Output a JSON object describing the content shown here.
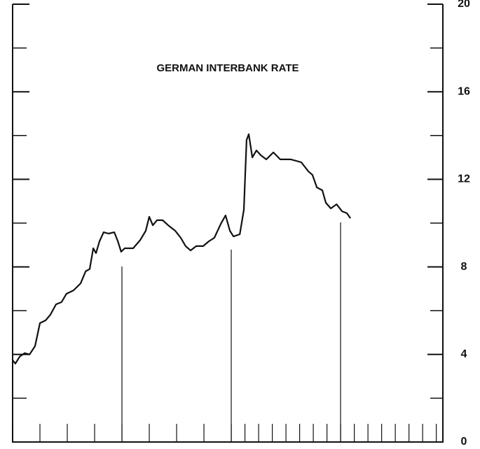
{
  "chart_data": {
    "type": "line",
    "title": "GERMAN INTERBANK RATE",
    "x": [
      0,
      0.1,
      0.26,
      0.44,
      0.62,
      0.82,
      1,
      1.21,
      1.38,
      1.59,
      1.79,
      1.97,
      2.23,
      2.49,
      2.67,
      2.82,
      2.95,
      3.05,
      3.18,
      3.33,
      3.51,
      3.72,
      3.85,
      3.97,
      4.1,
      4.41,
      4.67,
      4.87,
      5,
      5.13,
      5.28,
      5.49,
      5.69,
      5.95,
      6.15,
      6.33,
      6.51,
      6.72,
      6.97,
      7.18,
      7.38,
      7.62,
      7.79,
      7.95,
      8.08,
      8.31,
      8.46,
      8.56,
      8.64,
      8.77,
      8.92,
      9.08,
      9.28,
      9.54,
      9.79,
      10.18,
      10.56,
      10.82,
      10.97,
      11.13,
      11.33,
      11.46,
      11.64,
      11.85,
      12.05,
      12.23,
      12.36
    ],
    "series": [
      {
        "color": "#111111",
        "values": [
          3.74,
          3.58,
          3.9,
          4.06,
          4.0,
          4.38,
          5.43,
          5.56,
          5.81,
          6.29,
          6.39,
          6.77,
          6.93,
          7.25,
          7.8,
          7.9,
          8.85,
          8.63,
          9.17,
          9.58,
          9.52,
          9.58,
          9.17,
          8.69,
          8.85,
          8.85,
          9.23,
          9.65,
          10.29,
          9.9,
          10.13,
          10.13,
          9.9,
          9.65,
          9.33,
          8.95,
          8.75,
          8.95,
          8.95,
          9.17,
          9.33,
          9.97,
          10.35,
          9.65,
          9.39,
          9.49,
          10.61,
          13.8,
          14.06,
          13.0,
          13.32,
          13.1,
          12.91,
          13.23,
          12.91,
          12.91,
          12.78,
          12.36,
          12.2,
          11.63,
          11.5,
          10.93,
          10.67,
          10.86,
          10.54,
          10.45,
          10.22
        ]
      }
    ],
    "xlim": [
      0,
      15.74
    ],
    "xticks": [
      0,
      1,
      2,
      3,
      4,
      5,
      6,
      7,
      8,
      8.5,
      9,
      9.5,
      10,
      10.5,
      11,
      11.5,
      12,
      12.5,
      13,
      13.5,
      14,
      14.5,
      15,
      15.5
    ],
    "ylim": [
      0,
      20
    ],
    "yticks": [
      0,
      4,
      8,
      12,
      16,
      20
    ],
    "yminor": [
      2,
      6,
      10,
      14,
      18
    ]
  }
}
